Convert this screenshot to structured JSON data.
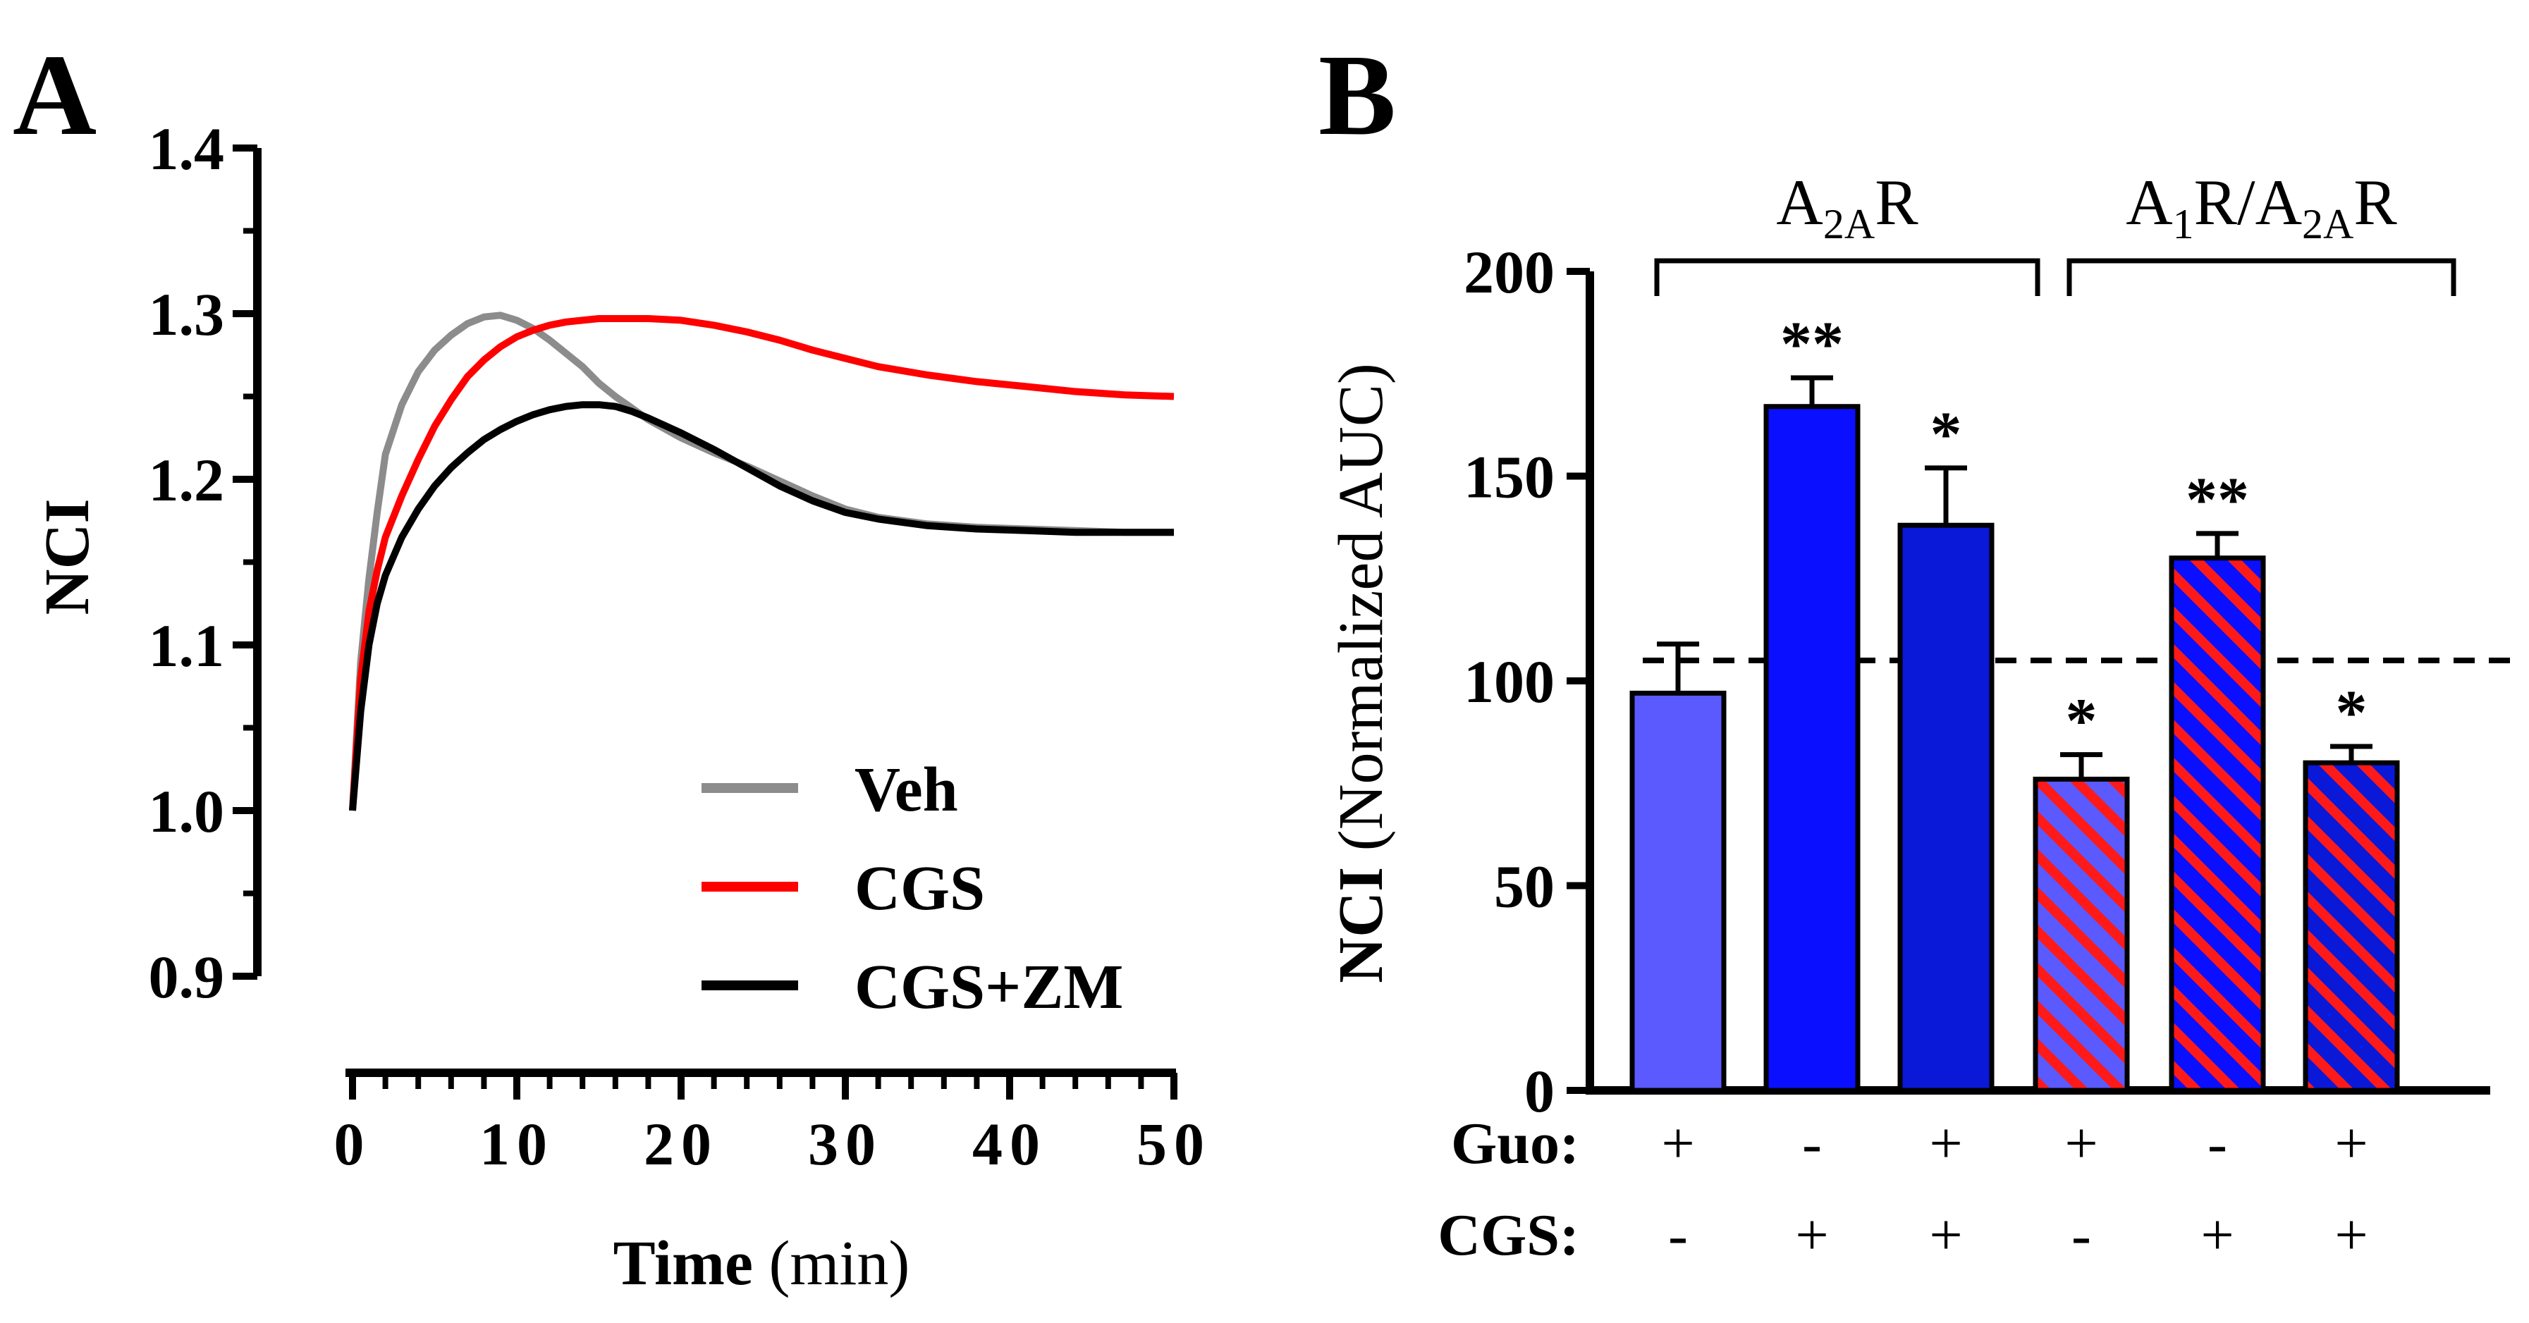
{
  "panels": {
    "a_label": "A",
    "b_label": "B"
  },
  "chart_data": [
    {
      "panel": "A",
      "type": "line",
      "title": "",
      "xlabel_bold": "Time",
      "xlabel_unit": "(min)",
      "ylabel": "NCI",
      "xlim": [
        0,
        50
      ],
      "ylim": [
        0.9,
        1.4
      ],
      "x_ticks": [
        "0",
        "10",
        "20",
        "30",
        "40",
        "50"
      ],
      "y_ticks": [
        "1.4",
        "1.3",
        "1.2",
        "1.1",
        "1.0",
        "0.9"
      ],
      "legend_position": "bottom-right",
      "series": [
        {
          "name": "Veh",
          "color": "#8c8c8c",
          "x": [
            0,
            0.5,
            1,
            1.5,
            2,
            3,
            4,
            5,
            6,
            7,
            8,
            9,
            10,
            11,
            12,
            13,
            14,
            15,
            16,
            17,
            18,
            20,
            22,
            24,
            26,
            28,
            30,
            32,
            35,
            38,
            41,
            44,
            47,
            50
          ],
          "y": [
            1.0,
            1.09,
            1.14,
            1.18,
            1.215,
            1.245,
            1.265,
            1.278,
            1.287,
            1.294,
            1.298,
            1.299,
            1.296,
            1.291,
            1.284,
            1.276,
            1.268,
            1.258,
            1.25,
            1.243,
            1.236,
            1.225,
            1.216,
            1.208,
            1.199,
            1.19,
            1.182,
            1.177,
            1.173,
            1.171,
            1.17,
            1.169,
            1.168,
            1.168
          ]
        },
        {
          "name": "CGS",
          "color": "#ff0000",
          "x": [
            0,
            0.5,
            1,
            1.5,
            2,
            3,
            4,
            5,
            6,
            7,
            8,
            9,
            10,
            11,
            12,
            13,
            14,
            15,
            16,
            17,
            18,
            20,
            22,
            24,
            26,
            28,
            30,
            32,
            35,
            38,
            41,
            44,
            47,
            50
          ],
          "y": [
            1.0,
            1.08,
            1.12,
            1.145,
            1.165,
            1.19,
            1.212,
            1.232,
            1.248,
            1.262,
            1.272,
            1.28,
            1.286,
            1.29,
            1.293,
            1.295,
            1.296,
            1.297,
            1.297,
            1.297,
            1.297,
            1.296,
            1.293,
            1.289,
            1.284,
            1.278,
            1.273,
            1.268,
            1.263,
            1.259,
            1.256,
            1.253,
            1.251,
            1.25
          ]
        },
        {
          "name": "CGS+ZM",
          "color": "#000000",
          "x": [
            0,
            0.5,
            1,
            1.5,
            2,
            3,
            4,
            5,
            6,
            7,
            8,
            9,
            10,
            11,
            12,
            13,
            14,
            15,
            16,
            17,
            18,
            20,
            22,
            24,
            26,
            28,
            30,
            32,
            35,
            38,
            41,
            44,
            47,
            50
          ],
          "y": [
            1.0,
            1.06,
            1.1,
            1.125,
            1.142,
            1.165,
            1.182,
            1.196,
            1.207,
            1.216,
            1.224,
            1.23,
            1.235,
            1.239,
            1.242,
            1.244,
            1.245,
            1.245,
            1.244,
            1.241,
            1.237,
            1.228,
            1.218,
            1.207,
            1.196,
            1.187,
            1.18,
            1.176,
            1.172,
            1.17,
            1.169,
            1.168,
            1.168,
            1.168
          ]
        }
      ]
    },
    {
      "panel": "B",
      "type": "bar",
      "title": "",
      "ylabel_bold": "NCI",
      "ylabel_rest": "(Normalized AUC)",
      "ylim": [
        0,
        200
      ],
      "y_ticks": [
        "200",
        "150",
        "100",
        "50",
        "0"
      ],
      "reference_line": 105,
      "groups": [
        {
          "label_main": "A",
          "label_sub": "2A",
          "label_tail": "R",
          "bars": [
            0,
            1,
            2
          ]
        },
        {
          "label_main": "A",
          "label_sub": "1",
          "label_mid": "R/A",
          "label_sub2": "2A",
          "label_tail": "R",
          "bars": [
            3,
            4,
            5
          ]
        }
      ],
      "bars": [
        {
          "value": 97,
          "error": 12,
          "significance": "",
          "fill": "#5a5aff",
          "stripe": ""
        },
        {
          "value": 167,
          "error": 7,
          "significance": "**",
          "fill": "#0a10ff",
          "stripe": ""
        },
        {
          "value": 138,
          "error": 14,
          "significance": "*",
          "fill": "#0a18d8",
          "stripe": ""
        },
        {
          "value": 76,
          "error": 6,
          "significance": "*",
          "fill": "#5a5aff",
          "stripe": "#ff1a1a"
        },
        {
          "value": 130,
          "error": 6,
          "significance": "**",
          "fill": "#0a10ff",
          "stripe": "#ff1a1a"
        },
        {
          "value": 80,
          "error": 4,
          "significance": "*",
          "fill": "#0a18d8",
          "stripe": "#ff1a1a"
        }
      ],
      "conditions": [
        {
          "label": "Guo:",
          "values": [
            "+",
            "-",
            "+",
            "+",
            "-",
            "+"
          ]
        },
        {
          "label": "CGS:",
          "values": [
            "-",
            "+",
            "+",
            "-",
            "+",
            "+"
          ]
        }
      ]
    }
  ]
}
